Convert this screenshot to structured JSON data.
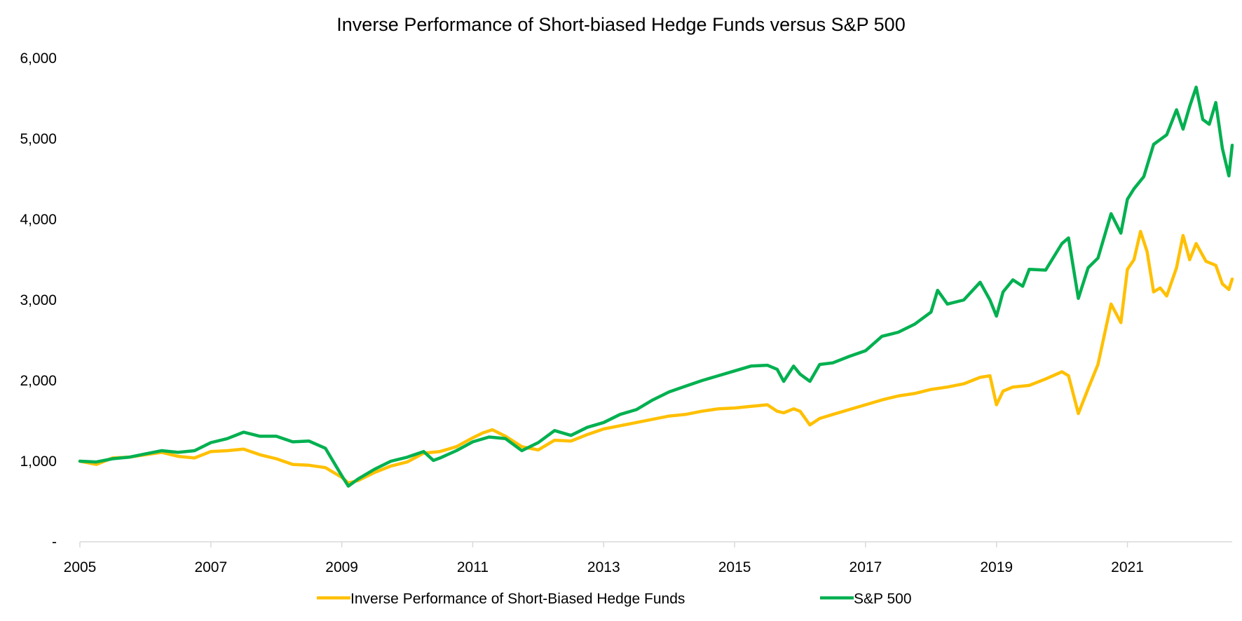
{
  "chart_data": {
    "type": "line",
    "title": "Inverse Performance of Short-biased Hedge Funds versus S&P 500",
    "xlabel": "",
    "ylabel": "",
    "xlim": [
      2005,
      2022.6
    ],
    "ylim": [
      0,
      6000
    ],
    "x_ticks": [
      2005,
      2007,
      2009,
      2011,
      2013,
      2015,
      2017,
      2019,
      2021
    ],
    "x_tick_labels": [
      "2005",
      "2007",
      "2009",
      "2011",
      "2013",
      "2015",
      "2017",
      "2019",
      "2021"
    ],
    "y_ticks": [
      0,
      1000,
      2000,
      3000,
      4000,
      5000,
      6000
    ],
    "y_tick_labels": [
      "-",
      "1,000",
      "2,000",
      "3,000",
      "4,000",
      "5,000",
      "6,000"
    ],
    "legend_position": "bottom",
    "series": [
      {
        "name": "Inverse Performance of Short-Biased Hedge Funds",
        "color": "#FFC000",
        "points": [
          [
            2005.0,
            1000
          ],
          [
            2005.25,
            960
          ],
          [
            2005.5,
            1040
          ],
          [
            2005.75,
            1050
          ],
          [
            2006.0,
            1080
          ],
          [
            2006.25,
            1110
          ],
          [
            2006.5,
            1060
          ],
          [
            2006.75,
            1040
          ],
          [
            2007.0,
            1120
          ],
          [
            2007.25,
            1130
          ],
          [
            2007.5,
            1150
          ],
          [
            2007.75,
            1080
          ],
          [
            2008.0,
            1030
          ],
          [
            2008.25,
            960
          ],
          [
            2008.5,
            950
          ],
          [
            2008.75,
            920
          ],
          [
            2009.0,
            800
          ],
          [
            2009.1,
            730
          ],
          [
            2009.25,
            760
          ],
          [
            2009.5,
            860
          ],
          [
            2009.75,
            940
          ],
          [
            2010.0,
            990
          ],
          [
            2010.25,
            1100
          ],
          [
            2010.5,
            1120
          ],
          [
            2010.75,
            1180
          ],
          [
            2011.0,
            1290
          ],
          [
            2011.15,
            1350
          ],
          [
            2011.3,
            1390
          ],
          [
            2011.5,
            1310
          ],
          [
            2011.75,
            1180
          ],
          [
            2012.0,
            1140
          ],
          [
            2012.25,
            1260
          ],
          [
            2012.5,
            1250
          ],
          [
            2012.75,
            1330
          ],
          [
            2013.0,
            1400
          ],
          [
            2013.25,
            1440
          ],
          [
            2013.5,
            1480
          ],
          [
            2013.75,
            1520
          ],
          [
            2014.0,
            1560
          ],
          [
            2014.25,
            1580
          ],
          [
            2014.5,
            1620
          ],
          [
            2014.75,
            1650
          ],
          [
            2015.0,
            1660
          ],
          [
            2015.25,
            1680
          ],
          [
            2015.5,
            1700
          ],
          [
            2015.65,
            1620
          ],
          [
            2015.75,
            1600
          ],
          [
            2015.9,
            1650
          ],
          [
            2016.0,
            1620
          ],
          [
            2016.15,
            1450
          ],
          [
            2016.3,
            1530
          ],
          [
            2016.5,
            1580
          ],
          [
            2016.75,
            1640
          ],
          [
            2017.0,
            1700
          ],
          [
            2017.25,
            1760
          ],
          [
            2017.5,
            1810
          ],
          [
            2017.75,
            1840
          ],
          [
            2018.0,
            1890
          ],
          [
            2018.25,
            1920
          ],
          [
            2018.5,
            1960
          ],
          [
            2018.75,
            2040
          ],
          [
            2018.9,
            2060
          ],
          [
            2019.0,
            1700
          ],
          [
            2019.1,
            1870
          ],
          [
            2019.25,
            1920
          ],
          [
            2019.5,
            1940
          ],
          [
            2019.75,
            2020
          ],
          [
            2020.0,
            2110
          ],
          [
            2020.1,
            2060
          ],
          [
            2020.25,
            1590
          ],
          [
            2020.4,
            1900
          ],
          [
            2020.55,
            2200
          ],
          [
            2020.75,
            2950
          ],
          [
            2020.9,
            2720
          ],
          [
            2021.0,
            3380
          ],
          [
            2021.1,
            3500
          ],
          [
            2021.2,
            3850
          ],
          [
            2021.3,
            3600
          ],
          [
            2021.4,
            3100
          ],
          [
            2021.5,
            3150
          ],
          [
            2021.6,
            3050
          ],
          [
            2021.75,
            3400
          ],
          [
            2021.85,
            3800
          ],
          [
            2021.95,
            3500
          ],
          [
            2022.05,
            3700
          ],
          [
            2022.2,
            3480
          ],
          [
            2022.35,
            3430
          ],
          [
            2022.45,
            3200
          ],
          [
            2022.55,
            3130
          ],
          [
            2022.6,
            3260
          ]
        ]
      },
      {
        "name": "S&P 500",
        "color": "#00B050",
        "points": [
          [
            2005.0,
            1000
          ],
          [
            2005.25,
            990
          ],
          [
            2005.5,
            1030
          ],
          [
            2005.75,
            1050
          ],
          [
            2006.0,
            1090
          ],
          [
            2006.25,
            1130
          ],
          [
            2006.5,
            1110
          ],
          [
            2006.75,
            1130
          ],
          [
            2007.0,
            1230
          ],
          [
            2007.25,
            1280
          ],
          [
            2007.5,
            1360
          ],
          [
            2007.75,
            1310
          ],
          [
            2008.0,
            1310
          ],
          [
            2008.25,
            1240
          ],
          [
            2008.5,
            1250
          ],
          [
            2008.75,
            1160
          ],
          [
            2009.0,
            820
          ],
          [
            2009.1,
            690
          ],
          [
            2009.25,
            780
          ],
          [
            2009.5,
            900
          ],
          [
            2009.75,
            1000
          ],
          [
            2010.0,
            1050
          ],
          [
            2010.25,
            1120
          ],
          [
            2010.4,
            1010
          ],
          [
            2010.5,
            1040
          ],
          [
            2010.75,
            1130
          ],
          [
            2011.0,
            1240
          ],
          [
            2011.25,
            1300
          ],
          [
            2011.5,
            1280
          ],
          [
            2011.75,
            1130
          ],
          [
            2012.0,
            1230
          ],
          [
            2012.25,
            1380
          ],
          [
            2012.5,
            1320
          ],
          [
            2012.75,
            1420
          ],
          [
            2013.0,
            1480
          ],
          [
            2013.25,
            1580
          ],
          [
            2013.5,
            1640
          ],
          [
            2013.75,
            1760
          ],
          [
            2014.0,
            1860
          ],
          [
            2014.25,
            1930
          ],
          [
            2014.5,
            2000
          ],
          [
            2014.75,
            2060
          ],
          [
            2015.0,
            2120
          ],
          [
            2015.25,
            2180
          ],
          [
            2015.5,
            2190
          ],
          [
            2015.65,
            2140
          ],
          [
            2015.75,
            1990
          ],
          [
            2015.9,
            2180
          ],
          [
            2016.0,
            2080
          ],
          [
            2016.15,
            1990
          ],
          [
            2016.3,
            2200
          ],
          [
            2016.5,
            2220
          ],
          [
            2016.75,
            2300
          ],
          [
            2017.0,
            2370
          ],
          [
            2017.25,
            2550
          ],
          [
            2017.5,
            2600
          ],
          [
            2017.75,
            2700
          ],
          [
            2018.0,
            2850
          ],
          [
            2018.1,
            3120
          ],
          [
            2018.25,
            2950
          ],
          [
            2018.5,
            3000
          ],
          [
            2018.75,
            3220
          ],
          [
            2018.9,
            3000
          ],
          [
            2019.0,
            2800
          ],
          [
            2019.1,
            3100
          ],
          [
            2019.25,
            3250
          ],
          [
            2019.4,
            3170
          ],
          [
            2019.5,
            3380
          ],
          [
            2019.75,
            3370
          ],
          [
            2020.0,
            3700
          ],
          [
            2020.1,
            3770
          ],
          [
            2020.25,
            3020
          ],
          [
            2020.4,
            3400
          ],
          [
            2020.55,
            3520
          ],
          [
            2020.75,
            4070
          ],
          [
            2020.9,
            3830
          ],
          [
            2021.0,
            4250
          ],
          [
            2021.1,
            4380
          ],
          [
            2021.25,
            4530
          ],
          [
            2021.4,
            4930
          ],
          [
            2021.6,
            5050
          ],
          [
            2021.75,
            5360
          ],
          [
            2021.85,
            5120
          ],
          [
            2021.95,
            5400
          ],
          [
            2022.05,
            5640
          ],
          [
            2022.15,
            5240
          ],
          [
            2022.25,
            5180
          ],
          [
            2022.35,
            5450
          ],
          [
            2022.45,
            4880
          ],
          [
            2022.55,
            4540
          ],
          [
            2022.6,
            4920
          ]
        ]
      }
    ]
  }
}
